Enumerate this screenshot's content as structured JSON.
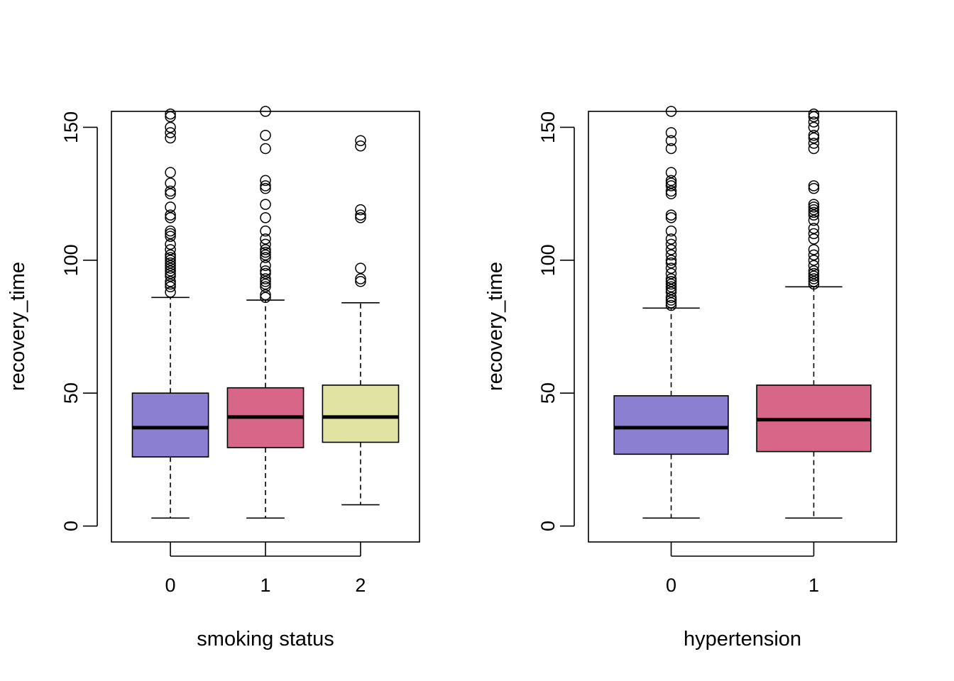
{
  "chart_data": [
    {
      "type": "boxplot",
      "xlabel": "smoking status",
      "ylabel": "recovery_time",
      "ylim": [
        -6,
        156
      ],
      "yticks": [
        0,
        50,
        100,
        150
      ],
      "categories": [
        "0",
        "1",
        "2"
      ],
      "boxes": [
        {
          "category": "0",
          "color": "#8A7FD1",
          "whisker_low": 3,
          "q1": 26,
          "median": 37,
          "q3": 50,
          "whisker_high": 86,
          "outliers": [
            88,
            90,
            91,
            92,
            94,
            95,
            96,
            97,
            98,
            99,
            100,
            101,
            102,
            104,
            106,
            109,
            110,
            111,
            116,
            117,
            120,
            125,
            126,
            129,
            133,
            146,
            148,
            150,
            154,
            155
          ]
        },
        {
          "category": "1",
          "color": "#D76688",
          "whisker_low": 3,
          "q1": 29.5,
          "median": 41,
          "q3": 52,
          "whisker_high": 85,
          "outliers": [
            86,
            87,
            90,
            91,
            92,
            93,
            95,
            96,
            98,
            101,
            102,
            103,
            104,
            106,
            108,
            111,
            116,
            121,
            127,
            128,
            130,
            142,
            147,
            156
          ]
        },
        {
          "category": "2",
          "color": "#E1E3A2",
          "whisker_low": 8,
          "q1": 31.5,
          "median": 41,
          "q3": 53,
          "whisker_high": 84,
          "outliers": [
            92,
            93,
            97,
            116,
            117,
            119,
            143,
            145
          ]
        }
      ]
    },
    {
      "type": "boxplot",
      "xlabel": "hypertension",
      "ylabel": "recovery_time",
      "ylim": [
        -6,
        156
      ],
      "yticks": [
        0,
        50,
        100,
        150
      ],
      "categories": [
        "0",
        "1"
      ],
      "boxes": [
        {
          "category": "0",
          "color": "#8A7FD1",
          "whisker_low": 3,
          "q1": 27,
          "median": 37,
          "q3": 49,
          "whisker_high": 82,
          "outliers": [
            83,
            84,
            85,
            86,
            88,
            89,
            90,
            91,
            92,
            93,
            95,
            97,
            99,
            100,
            102,
            104,
            106,
            108,
            111,
            116,
            117,
            125,
            126,
            128,
            129,
            130,
            133,
            142,
            145,
            148,
            156
          ]
        },
        {
          "category": "1",
          "color": "#D76688",
          "whisker_low": 3,
          "q1": 28,
          "median": 40,
          "q3": 53,
          "whisker_high": 90,
          "outliers": [
            91,
            92,
            93,
            94,
            95,
            96,
            98,
            100,
            102,
            104,
            108,
            110,
            112,
            115,
            117,
            118,
            119,
            120,
            121,
            127,
            128,
            142,
            144,
            146,
            147,
            150,
            152,
            154,
            155
          ]
        }
      ]
    }
  ]
}
